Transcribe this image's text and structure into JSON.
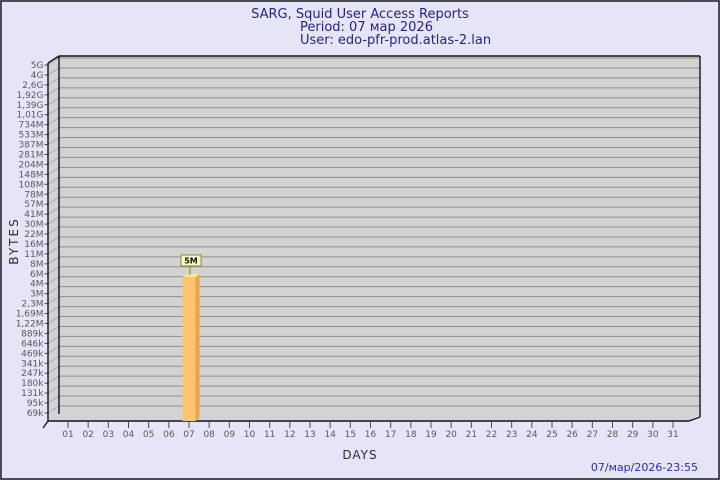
{
  "header": {
    "title": "SARG, Squid User Access Reports",
    "period": "Period: 07 мар 2026",
    "user": "User: edo-pfr-prod.atlas-2.lan"
  },
  "footer": {
    "timestamp": "07/мар/2026-23:55"
  },
  "chart_data": {
    "type": "bar",
    "title": "SARG, Squid User Access Reports",
    "subtitle_lines": [
      "Period: 07 мар 2026",
      "User: edo-pfr-prod.atlas-2.lan"
    ],
    "xlabel": "DAYS",
    "ylabel": "BYTES",
    "x_ticks": [
      "01",
      "02",
      "03",
      "04",
      "05",
      "06",
      "07",
      "08",
      "09",
      "10",
      "11",
      "12",
      "13",
      "14",
      "15",
      "16",
      "17",
      "18",
      "19",
      "20",
      "21",
      "22",
      "23",
      "24",
      "25",
      "26",
      "27",
      "28",
      "29",
      "30",
      "31"
    ],
    "y_ticks": [
      "5G",
      "4G",
      "2,6G",
      "1,92G",
      "1,39G",
      "1,01G",
      "734M",
      "533M",
      "387M",
      "281M",
      "204M",
      "148M",
      "108M",
      "78M",
      "57M",
      "41M",
      "30M",
      "22M",
      "16M",
      "11M",
      "8M",
      "6M",
      "4M",
      "3M",
      "2,3M",
      "1,69M",
      "1,22M",
      "889k",
      "646k",
      "469k",
      "341k",
      "247k",
      "180k",
      "131k",
      "95k",
      "69k"
    ],
    "y_scale": "logarithmic-like",
    "grid": "horizontal",
    "style": "3d-bar",
    "bars": [
      {
        "day": "07",
        "label": "5M",
        "approx_bytes": 5000000
      }
    ],
    "colors": {
      "page_bg": "#e5e5f7",
      "plot_bg": "#d3d3d3",
      "gridline": "#8f8f8f",
      "wall": "#c3c3c7",
      "edge": "#141414",
      "bar_face": "#fcc46e",
      "bar_side": "#e9a546",
      "bar_top": "#fae6a0",
      "annotation_bg": "#f6f6c6",
      "annotation_border": "#8b8b2a",
      "axis_text": "#59595c",
      "title_text": "#252583",
      "timestamp_text": "#2a2ac0"
    }
  }
}
